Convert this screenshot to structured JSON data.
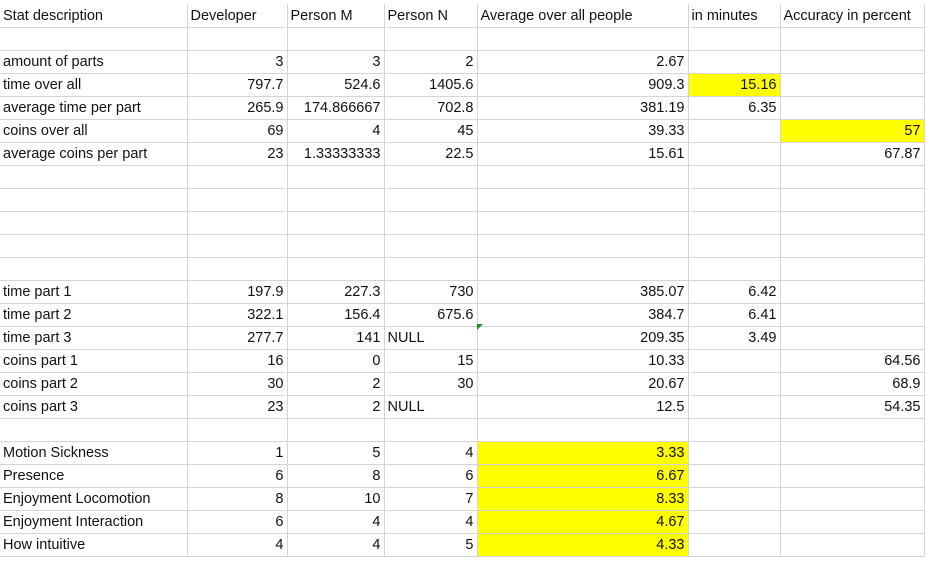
{
  "colors": {
    "highlight": "#ffff00",
    "gridline": "#d4d4d4",
    "comment_flag": "#1e8c2a"
  },
  "headers": [
    "Stat description",
    "Developer",
    "Person M",
    "Person N",
    "Average over all people",
    "in minutes",
    "Accuracy in percent"
  ],
  "rows": [
    [
      {
        "v": "",
        "t": "txt"
      },
      {
        "v": "",
        "t": "num"
      },
      {
        "v": "",
        "t": "num"
      },
      {
        "v": "",
        "t": "num"
      },
      {
        "v": "",
        "t": "num"
      },
      {
        "v": "",
        "t": "num"
      },
      {
        "v": "",
        "t": "num"
      }
    ],
    [
      {
        "v": "amount of parts",
        "t": "txt"
      },
      {
        "v": "3",
        "t": "num"
      },
      {
        "v": "3",
        "t": "num"
      },
      {
        "v": "2",
        "t": "num"
      },
      {
        "v": "2.67",
        "t": "num"
      },
      {
        "v": "",
        "t": "num"
      },
      {
        "v": "",
        "t": "num"
      }
    ],
    [
      {
        "v": "time over all",
        "t": "txt"
      },
      {
        "v": "797.7",
        "t": "num"
      },
      {
        "v": "524.6",
        "t": "num"
      },
      {
        "v": "1405.6",
        "t": "num"
      },
      {
        "v": "909.3",
        "t": "num"
      },
      {
        "v": "15.16",
        "t": "num",
        "hl": true
      },
      {
        "v": "",
        "t": "num"
      }
    ],
    [
      {
        "v": "average time per part",
        "t": "txt"
      },
      {
        "v": "265.9",
        "t": "num"
      },
      {
        "v": "174.866667",
        "t": "num"
      },
      {
        "v": "702.8",
        "t": "num"
      },
      {
        "v": "381.19",
        "t": "num"
      },
      {
        "v": "6.35",
        "t": "num"
      },
      {
        "v": "",
        "t": "num"
      }
    ],
    [
      {
        "v": "coins over all",
        "t": "txt"
      },
      {
        "v": "69",
        "t": "num"
      },
      {
        "v": "4",
        "t": "num"
      },
      {
        "v": "45",
        "t": "num"
      },
      {
        "v": "39.33",
        "t": "num"
      },
      {
        "v": "",
        "t": "num"
      },
      {
        "v": "57",
        "t": "num",
        "hl": true
      }
    ],
    [
      {
        "v": "average coins per part",
        "t": "txt"
      },
      {
        "v": "23",
        "t": "num"
      },
      {
        "v": "1.33333333",
        "t": "num"
      },
      {
        "v": "22.5",
        "t": "num"
      },
      {
        "v": "15.61",
        "t": "num"
      },
      {
        "v": "",
        "t": "num"
      },
      {
        "v": "67.87",
        "t": "num"
      }
    ],
    [
      {
        "v": "",
        "t": "txt"
      },
      {
        "v": "",
        "t": "num"
      },
      {
        "v": "",
        "t": "num"
      },
      {
        "v": "",
        "t": "num"
      },
      {
        "v": "",
        "t": "num"
      },
      {
        "v": "",
        "t": "num"
      },
      {
        "v": "",
        "t": "num"
      }
    ],
    [
      {
        "v": "",
        "t": "txt"
      },
      {
        "v": "",
        "t": "num"
      },
      {
        "v": "",
        "t": "num"
      },
      {
        "v": "",
        "t": "num"
      },
      {
        "v": "",
        "t": "num"
      },
      {
        "v": "",
        "t": "num"
      },
      {
        "v": "",
        "t": "num"
      }
    ],
    [
      {
        "v": "",
        "t": "txt"
      },
      {
        "v": "",
        "t": "num"
      },
      {
        "v": "",
        "t": "num"
      },
      {
        "v": "",
        "t": "num"
      },
      {
        "v": "",
        "t": "num"
      },
      {
        "v": "",
        "t": "num"
      },
      {
        "v": "",
        "t": "num"
      }
    ],
    [
      {
        "v": "",
        "t": "txt"
      },
      {
        "v": "",
        "t": "num"
      },
      {
        "v": "",
        "t": "num"
      },
      {
        "v": "",
        "t": "num"
      },
      {
        "v": "",
        "t": "num"
      },
      {
        "v": "",
        "t": "num"
      },
      {
        "v": "",
        "t": "num"
      }
    ],
    [
      {
        "v": "",
        "t": "txt"
      },
      {
        "v": "",
        "t": "num"
      },
      {
        "v": "",
        "t": "num"
      },
      {
        "v": "",
        "t": "num"
      },
      {
        "v": "",
        "t": "num"
      },
      {
        "v": "",
        "t": "num"
      },
      {
        "v": "",
        "t": "num"
      }
    ],
    [
      {
        "v": "time part 1",
        "t": "txt"
      },
      {
        "v": "197.9",
        "t": "num"
      },
      {
        "v": "227.3",
        "t": "num"
      },
      {
        "v": "730",
        "t": "num"
      },
      {
        "v": "385.07",
        "t": "num"
      },
      {
        "v": "6.42",
        "t": "num"
      },
      {
        "v": "",
        "t": "num"
      }
    ],
    [
      {
        "v": "time part 2",
        "t": "txt"
      },
      {
        "v": "322.1",
        "t": "num"
      },
      {
        "v": "156.4",
        "t": "num"
      },
      {
        "v": "675.6",
        "t": "num"
      },
      {
        "v": "384.7",
        "t": "num"
      },
      {
        "v": "6.41",
        "t": "num"
      },
      {
        "v": "",
        "t": "num"
      }
    ],
    [
      {
        "v": "time part 3",
        "t": "txt"
      },
      {
        "v": "277.7",
        "t": "num"
      },
      {
        "v": "141",
        "t": "num"
      },
      {
        "v": "NULL",
        "t": "txt"
      },
      {
        "v": "209.35",
        "t": "num"
      },
      {
        "v": "3.49",
        "t": "num"
      },
      {
        "v": "",
        "t": "num"
      }
    ],
    [
      {
        "v": "coins part 1",
        "t": "txt"
      },
      {
        "v": "16",
        "t": "num"
      },
      {
        "v": "0",
        "t": "num"
      },
      {
        "v": "15",
        "t": "num"
      },
      {
        "v": "10.33",
        "t": "num"
      },
      {
        "v": "",
        "t": "num"
      },
      {
        "v": "64.56",
        "t": "num"
      }
    ],
    [
      {
        "v": "coins part 2",
        "t": "txt"
      },
      {
        "v": "30",
        "t": "num"
      },
      {
        "v": "2",
        "t": "num"
      },
      {
        "v": "30",
        "t": "num"
      },
      {
        "v": "20.67",
        "t": "num"
      },
      {
        "v": "",
        "t": "num"
      },
      {
        "v": "68.9",
        "t": "num"
      }
    ],
    [
      {
        "v": "coins part 3",
        "t": "txt"
      },
      {
        "v": "23",
        "t": "num"
      },
      {
        "v": "2",
        "t": "num"
      },
      {
        "v": "NULL",
        "t": "txt"
      },
      {
        "v": "12.5",
        "t": "num"
      },
      {
        "v": "",
        "t": "num"
      },
      {
        "v": "54.35",
        "t": "num"
      }
    ],
    [
      {
        "v": "",
        "t": "txt"
      },
      {
        "v": "",
        "t": "num"
      },
      {
        "v": "",
        "t": "num"
      },
      {
        "v": "",
        "t": "num"
      },
      {
        "v": "",
        "t": "num"
      },
      {
        "v": "",
        "t": "num"
      },
      {
        "v": "",
        "t": "num"
      }
    ],
    [
      {
        "v": "Motion Sickness",
        "t": "txt"
      },
      {
        "v": "1",
        "t": "num"
      },
      {
        "v": "5",
        "t": "num"
      },
      {
        "v": "4",
        "t": "num"
      },
      {
        "v": "3.33",
        "t": "num",
        "hl": true
      },
      {
        "v": "",
        "t": "num"
      },
      {
        "v": "",
        "t": "num"
      }
    ],
    [
      {
        "v": "Presence",
        "t": "txt"
      },
      {
        "v": "6",
        "t": "num"
      },
      {
        "v": "8",
        "t": "num"
      },
      {
        "v": "6",
        "t": "num"
      },
      {
        "v": "6.67",
        "t": "num",
        "hl": true
      },
      {
        "v": "",
        "t": "num"
      },
      {
        "v": "",
        "t": "num"
      }
    ],
    [
      {
        "v": "Enjoyment Locomotion",
        "t": "txt"
      },
      {
        "v": "8",
        "t": "num"
      },
      {
        "v": "10",
        "t": "num"
      },
      {
        "v": "7",
        "t": "num"
      },
      {
        "v": "8.33",
        "t": "num",
        "hl": true
      },
      {
        "v": "",
        "t": "num"
      },
      {
        "v": "",
        "t": "num"
      }
    ],
    [
      {
        "v": "Enjoyment Interaction",
        "t": "txt"
      },
      {
        "v": "6",
        "t": "num"
      },
      {
        "v": "4",
        "t": "num"
      },
      {
        "v": "4",
        "t": "num"
      },
      {
        "v": "4.67",
        "t": "num",
        "hl": true
      },
      {
        "v": "",
        "t": "num"
      },
      {
        "v": "",
        "t": "num"
      }
    ],
    [
      {
        "v": "How intuitive",
        "t": "txt"
      },
      {
        "v": "4",
        "t": "num"
      },
      {
        "v": "4",
        "t": "num"
      },
      {
        "v": "5",
        "t": "num"
      },
      {
        "v": "4.33",
        "t": "num",
        "hl": true
      },
      {
        "v": "",
        "t": "num"
      },
      {
        "v": "",
        "t": "num"
      }
    ]
  ]
}
